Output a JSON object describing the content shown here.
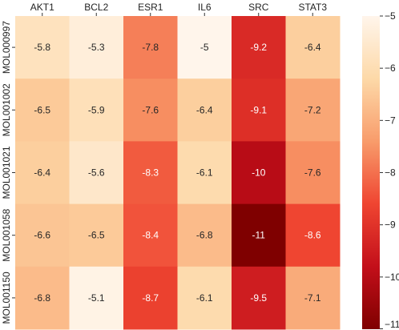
{
  "chart_data": {
    "type": "heatmap",
    "title": "",
    "xlabel": "",
    "ylabel": "",
    "columns": [
      "AKT1",
      "BCL2",
      "ESR1",
      "IL6",
      "SRC",
      "STAT3"
    ],
    "rows": [
      "MOL000997",
      "MOL001002",
      "MOL001021",
      "MOL001058",
      "MOL001150"
    ],
    "values": [
      [
        -5.8,
        -5.3,
        -7.8,
        -5,
        -9.2,
        -6.4
      ],
      [
        -6.5,
        -5.9,
        -7.6,
        -6.4,
        -9.1,
        -7.2
      ],
      [
        -6.4,
        -5.6,
        -8.3,
        -6.1,
        -10,
        -7.6
      ],
      [
        -6.6,
        -6.5,
        -8.4,
        -6.8,
        -11,
        -8.6
      ],
      [
        -6.8,
        -5.1,
        -8.7,
        -6.1,
        -9.5,
        -7.1
      ]
    ],
    "value_labels": [
      [
        "-5.8",
        "-5.3",
        "-7.8",
        "-5",
        "-9.2",
        "-6.4"
      ],
      [
        "-6.5",
        "-5.9",
        "-7.6",
        "-6.4",
        "-9.1",
        "-7.2"
      ],
      [
        "-6.4",
        "-5.6",
        "-8.3",
        "-6.1",
        "-10",
        "-7.6"
      ],
      [
        "-6.6",
        "-6.5",
        "-8.4",
        "-6.8",
        "-11",
        "-8.6"
      ],
      [
        "-6.8",
        "-5.1",
        "-8.7",
        "-6.1",
        "-9.5",
        "-7.1"
      ]
    ],
    "color_range": [
      -11,
      -5
    ],
    "colormap": [
      "#fff5eb",
      "#fdd9a8",
      "#f89c6b",
      "#ef4531",
      "#c30f1a",
      "#7f0000"
    ],
    "colorbar": {
      "ticks": [
        -5,
        -6,
        -7,
        -8,
        -9,
        -10,
        -11
      ],
      "tick_labels": [
        "−5",
        "−6",
        "−7",
        "−8",
        "−9",
        "−10",
        "−11"
      ]
    }
  }
}
